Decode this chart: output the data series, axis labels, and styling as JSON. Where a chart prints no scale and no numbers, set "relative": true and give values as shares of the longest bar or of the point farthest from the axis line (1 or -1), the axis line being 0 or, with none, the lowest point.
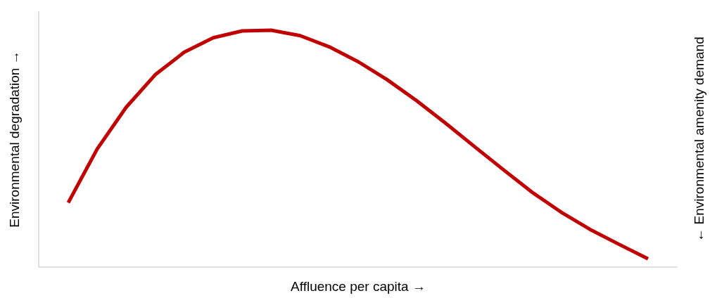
{
  "chart_data": {
    "type": "line",
    "xlabel": "Affluence per capita →",
    "ylabel": "Environmental degradation →",
    "y2label": "← Environmental amenity demand",
    "relative": true,
    "grid": false,
    "legend": false,
    "marker": "none",
    "line_style": "solid",
    "categories": [
      null,
      null,
      null,
      null,
      null,
      null,
      null,
      null,
      null,
      null,
      null,
      null,
      null,
      null,
      null,
      null,
      null,
      null,
      null,
      null,
      null
    ],
    "series": [
      {
        "color": "#c00000",
        "values": [
          0.272,
          0.499,
          0.675,
          0.812,
          0.907,
          0.968,
          0.997,
          1,
          0.977,
          0.93,
          0.867,
          0.791,
          0.704,
          0.609,
          0.51,
          0.412,
          0.316,
          0.232,
          0.159,
          0.096,
          0.035
        ]
      }
    ]
  }
}
